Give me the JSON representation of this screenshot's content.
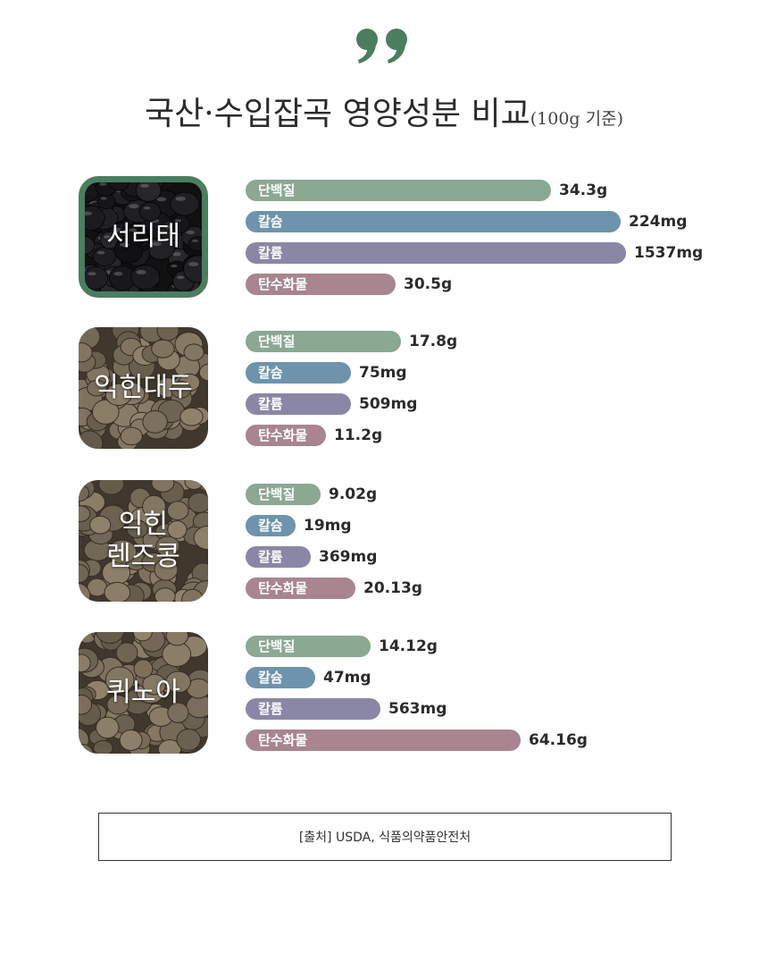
{
  "title": "국산·수입잡곡 영양성분 비교",
  "subtitle": "(100g 기준)",
  "quote_icon": "quote-icon",
  "colors": {
    "accent": "#4b7d5f",
    "protein": "#8aa892",
    "calcium": "#6e93ad",
    "potassium": "#8a87a6",
    "carbs": "#a8858f"
  },
  "source": "[출처] USDA, 식품의약품안전처",
  "chart_data": {
    "type": "bar",
    "series_names": [
      "단백질",
      "칼슘",
      "칼륨",
      "탄수화물"
    ],
    "foods": [
      {
        "name": "서리태",
        "selected": true,
        "bars": [
          {
            "label": "단백질",
            "value_text": "34.3g",
            "fill": 0.61
          },
          {
            "label": "칼슘",
            "value_text": "224mg",
            "fill": 0.75
          },
          {
            "label": "칼륨",
            "value_text": "1537mg",
            "fill": 0.76
          },
          {
            "label": "탄수화물",
            "value_text": "30.5g",
            "fill": 0.3
          }
        ]
      },
      {
        "name": "익힌대두",
        "selected": false,
        "bars": [
          {
            "label": "단백질",
            "value_text": "17.8g",
            "fill": 0.31
          },
          {
            "label": "칼슘",
            "value_text": "75mg",
            "fill": 0.21
          },
          {
            "label": "칼륨",
            "value_text": "509mg",
            "fill": 0.21
          },
          {
            "label": "탄수화물",
            "value_text": "11.2g",
            "fill": 0.16
          }
        ]
      },
      {
        "name": "익힌\n렌즈콩",
        "selected": false,
        "bars": [
          {
            "label": "단백질",
            "value_text": "9.02g",
            "fill": 0.15
          },
          {
            "label": "칼슘",
            "value_text": "19mg",
            "fill": 0.1
          },
          {
            "label": "칼륨",
            "value_text": "369mg",
            "fill": 0.13
          },
          {
            "label": "탄수화물",
            "value_text": "20.13g",
            "fill": 0.22
          }
        ]
      },
      {
        "name": "퀴노아",
        "selected": false,
        "bars": [
          {
            "label": "단백질",
            "value_text": "14.12g",
            "fill": 0.25
          },
          {
            "label": "칼슘",
            "value_text": "47mg",
            "fill": 0.14
          },
          {
            "label": "칼륨",
            "value_text": "563mg",
            "fill": 0.27
          },
          {
            "label": "탄수화물",
            "value_text": "64.16g",
            "fill": 0.55
          }
        ]
      }
    ]
  }
}
